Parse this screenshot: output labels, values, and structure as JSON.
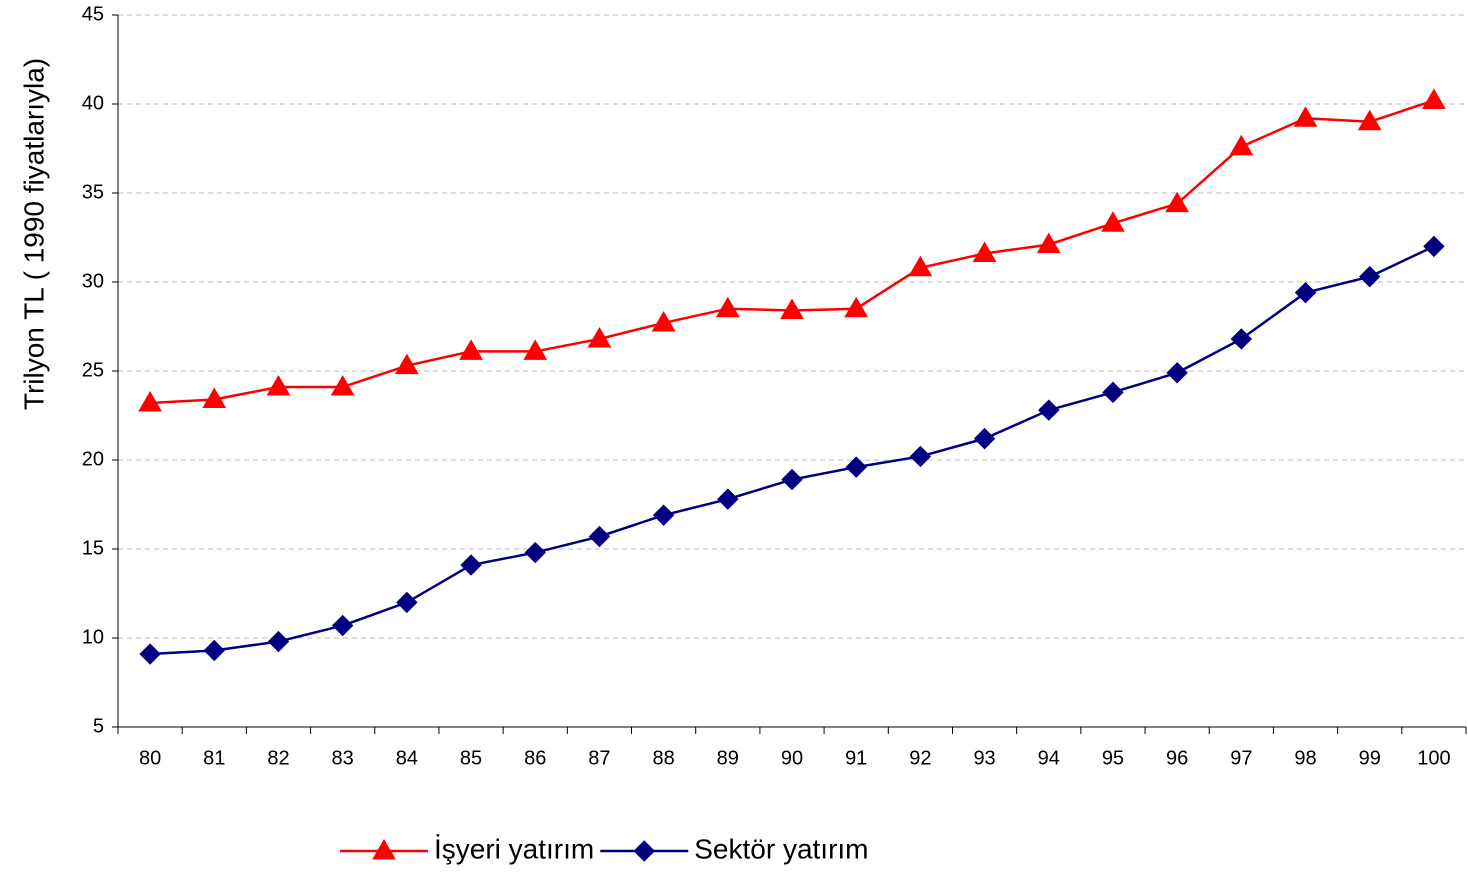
{
  "chart_data": {
    "type": "line",
    "y_label": "Trilyon TL ( 1990 fiyatlarıyla)",
    "categories": [
      "80",
      "81",
      "82",
      "83",
      "84",
      "85",
      "86",
      "87",
      "88",
      "89",
      "90",
      "91",
      "92",
      "93",
      "94",
      "95",
      "96",
      "97",
      "98",
      "99",
      "100"
    ],
    "series": [
      {
        "name": "İşyeri yatırım",
        "color": "#ff0000",
        "marker": "triangle",
        "values": [
          23.2,
          23.4,
          24.1,
          24.1,
          25.3,
          26.1,
          26.1,
          26.8,
          27.7,
          28.5,
          28.4,
          28.5,
          30.8,
          31.6,
          32.1,
          33.3,
          34.4,
          37.6,
          39.2,
          39.0,
          40.2
        ]
      },
      {
        "name": "Sektör yatırım",
        "color": "#000080",
        "marker": "diamond",
        "values": [
          9.1,
          9.3,
          9.8,
          10.7,
          12.0,
          14.1,
          14.8,
          15.7,
          16.9,
          17.8,
          18.9,
          19.6,
          20.2,
          21.2,
          22.8,
          23.8,
          24.9,
          26.8,
          29.4,
          30.3,
          32.0
        ]
      }
    ],
    "ylim": [
      5,
      45
    ],
    "yticks": [
      5,
      10,
      15,
      20,
      25,
      30,
      35,
      40,
      45
    ],
    "grid": true,
    "legend": "bottom"
  }
}
